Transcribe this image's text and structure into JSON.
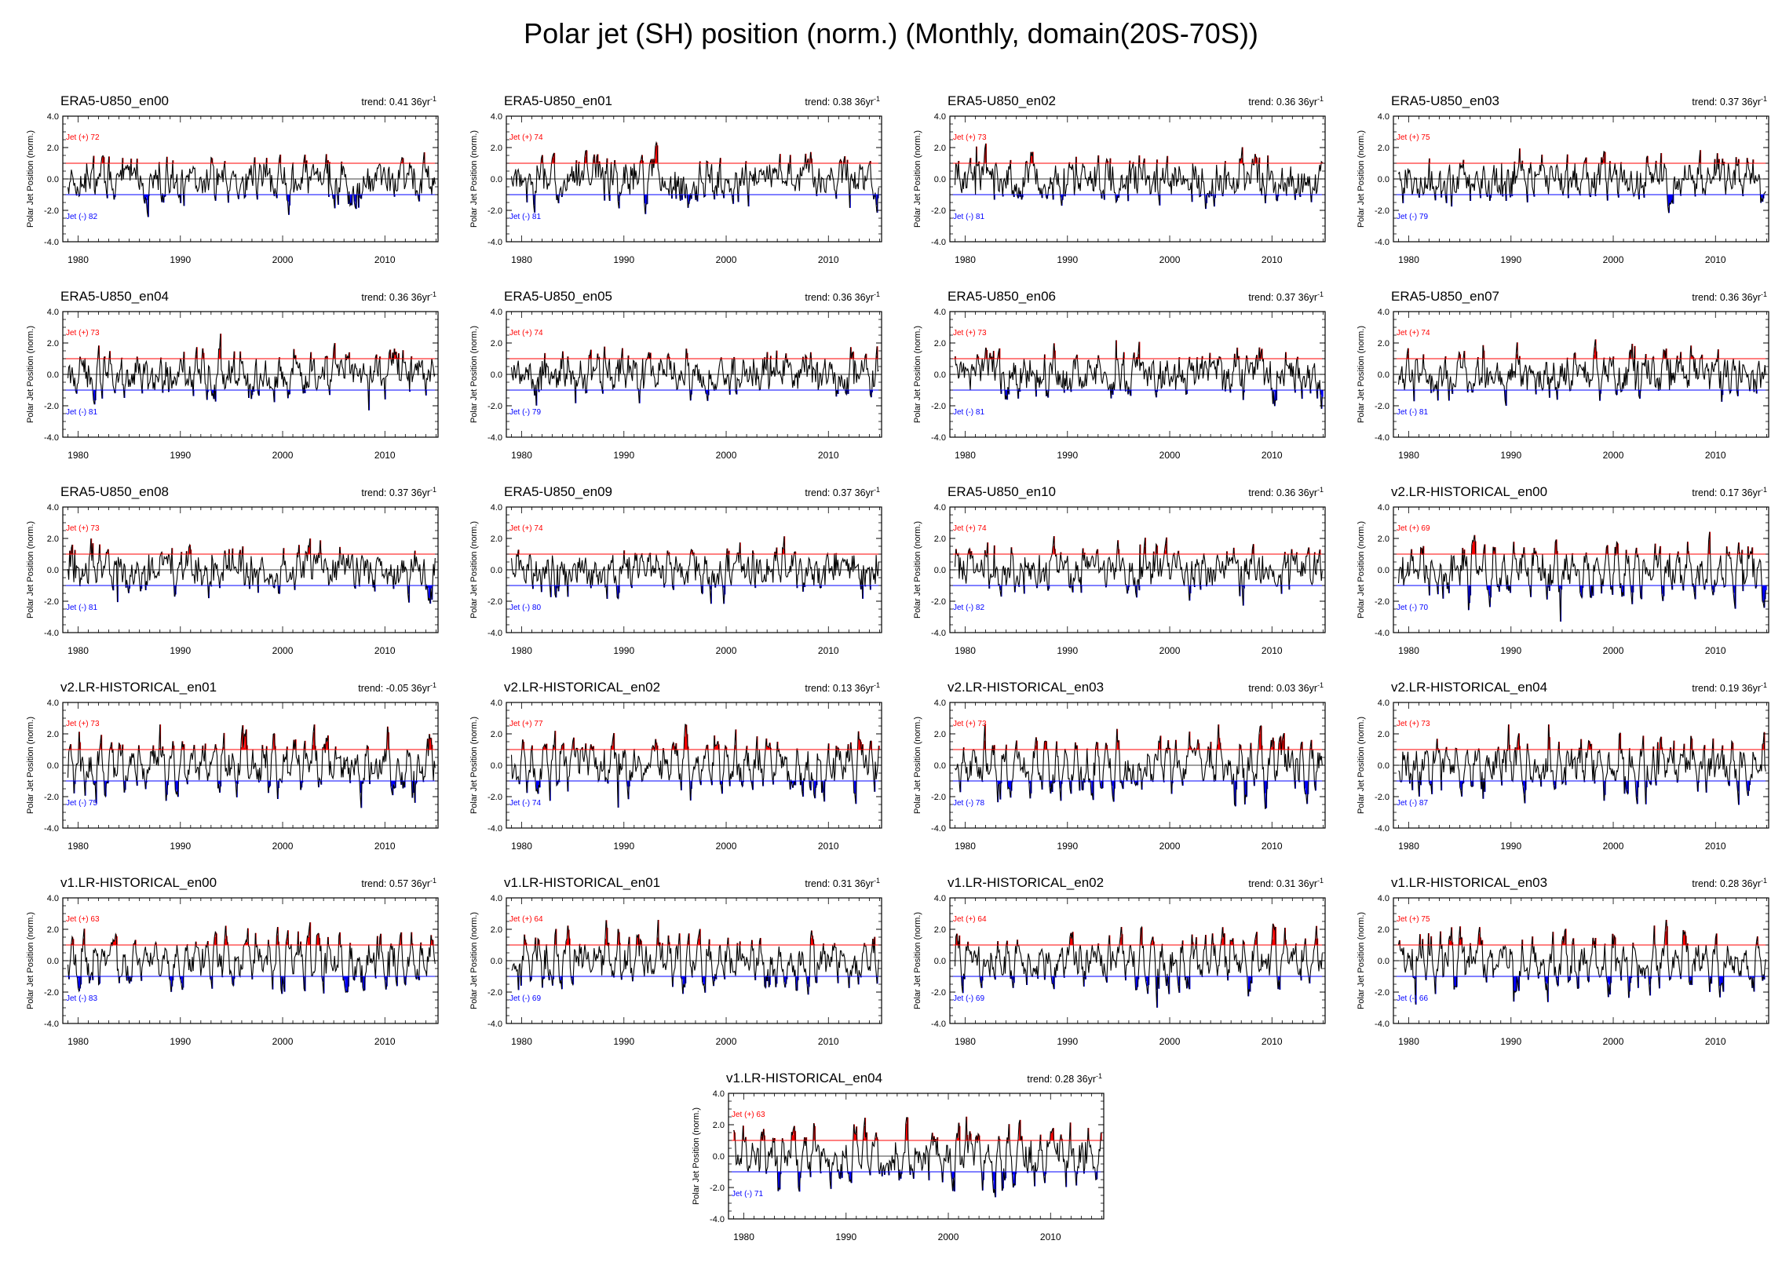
{
  "title": "Polar jet (SH) position (norm.) (Monthly, domain(20S-70S))",
  "colors": {
    "positive": "#ff0000",
    "negative": "#0000ff",
    "line": "#000000"
  },
  "chart_data": {
    "type": "line",
    "ylabel": "Polar Jet Position (norm.)",
    "ylim": [
      -4.0,
      4.0
    ],
    "yticks": [
      "4.0",
      "2.0",
      "0.0",
      "-2.0",
      "-4.0"
    ],
    "xlim": [
      1978.5,
      2015.2
    ],
    "xticks": [
      "1980",
      "1990",
      "2000",
      "2010"
    ],
    "threshold_positive": 1.0,
    "threshold_negative": -1.0,
    "pos_label_prefix": "Jet (+) ",
    "neg_label_prefix": "Jet (-) ",
    "trend_prefix": "trend: ",
    "trend_unit": "36yr",
    "trend_exp": "-1",
    "panels": [
      {
        "name": "ERA5-U850_en00",
        "trend": "0.41",
        "pos": "72",
        "neg": "82"
      },
      {
        "name": "ERA5-U850_en01",
        "trend": "0.38",
        "pos": "74",
        "neg": "81"
      },
      {
        "name": "ERA5-U850_en02",
        "trend": "0.36",
        "pos": "73",
        "neg": "81"
      },
      {
        "name": "ERA5-U850_en03",
        "trend": "0.37",
        "pos": "75",
        "neg": "79"
      },
      {
        "name": "ERA5-U850_en04",
        "trend": "0.36",
        "pos": "73",
        "neg": "81"
      },
      {
        "name": "ERA5-U850_en05",
        "trend": "0.36",
        "pos": "74",
        "neg": "79"
      },
      {
        "name": "ERA5-U850_en06",
        "trend": "0.37",
        "pos": "73",
        "neg": "81"
      },
      {
        "name": "ERA5-U850_en07",
        "trend": "0.36",
        "pos": "74",
        "neg": "81"
      },
      {
        "name": "ERA5-U850_en08",
        "trend": "0.37",
        "pos": "73",
        "neg": "81"
      },
      {
        "name": "ERA5-U850_en09",
        "trend": "0.37",
        "pos": "74",
        "neg": "80"
      },
      {
        "name": "ERA5-U850_en10",
        "trend": "0.36",
        "pos": "74",
        "neg": "82"
      },
      {
        "name": "v2.LR-HISTORICAL_en00",
        "trend": "0.17",
        "pos": "69",
        "neg": "70"
      },
      {
        "name": "v2.LR-HISTORICAL_en01",
        "trend": "-0.05",
        "pos": "73",
        "neg": "75"
      },
      {
        "name": "v2.LR-HISTORICAL_en02",
        "trend": "0.13",
        "pos": "77",
        "neg": "74"
      },
      {
        "name": "v2.LR-HISTORICAL_en03",
        "trend": "0.03",
        "pos": "73",
        "neg": "78"
      },
      {
        "name": "v2.LR-HISTORICAL_en04",
        "trend": "0.19",
        "pos": "73",
        "neg": "87"
      },
      {
        "name": "v1.LR-HISTORICAL_en00",
        "trend": "0.57",
        "pos": "63",
        "neg": "83"
      },
      {
        "name": "v1.LR-HISTORICAL_en01",
        "trend": "0.31",
        "pos": "64",
        "neg": "69"
      },
      {
        "name": "v1.LR-HISTORICAL_en02",
        "trend": "0.31",
        "pos": "64",
        "neg": "69"
      },
      {
        "name": "v1.LR-HISTORICAL_en03",
        "trend": "0.28",
        "pos": "75",
        "neg": "66"
      },
      {
        "name": "v1.LR-HISTORICAL_en04",
        "trend": "0.28",
        "pos": "63",
        "neg": "71"
      }
    ]
  }
}
